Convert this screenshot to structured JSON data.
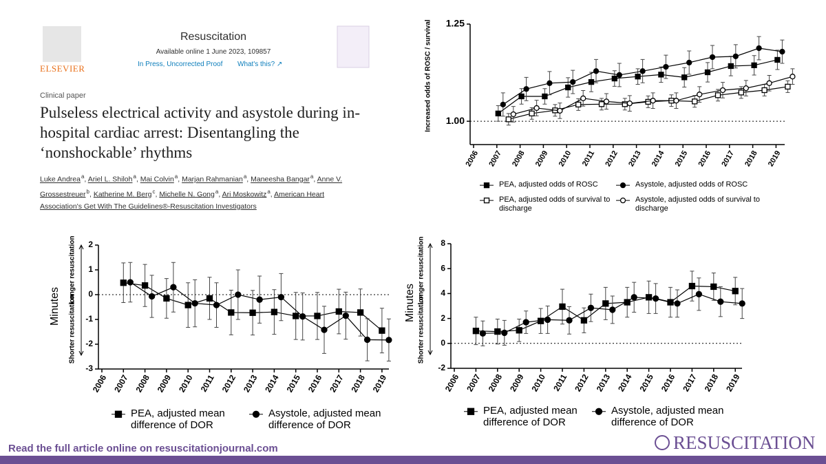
{
  "article": {
    "publisher": "ELSEVIER",
    "journal": "Resuscitation",
    "available": "Available online 1 June 2023, 109857",
    "status": "In Press, Uncorrected Proof",
    "whats_this": "What's this? ↗",
    "section": "Clinical paper",
    "title": "Pulseless electrical activity and asystole during in-hospital cardiac arrest: Disentangling the ‘nonshockable’ rhythms",
    "authors": [
      {
        "name": "Luke Andrea",
        "aff": "a"
      },
      {
        "name": "Ariel L. Shiloh",
        "aff": "a"
      },
      {
        "name": "Mai Colvin",
        "aff": "a"
      },
      {
        "name": "Marjan Rahmanian",
        "aff": "a"
      },
      {
        "name": "Maneesha Bangar",
        "aff": "a"
      },
      {
        "name": "Anne V. Grossestreuer",
        "aff": "b"
      },
      {
        "name": "Katherine M. Berg",
        "aff": "c"
      },
      {
        "name": "Michelle N. Gong",
        "aff": "a"
      },
      {
        "name": "Ari Moskowitz",
        "aff": "a"
      }
    ],
    "group": "American Heart Association's Get With The Guidelines®-Resuscitation Investigators"
  },
  "footer": {
    "cta": "Read the full article online on resuscitationjournal.com",
    "logo": "RESUSCITATION"
  },
  "chart_data": [
    {
      "type": "line",
      "ylabel": "Increased odds of ROSC / survival",
      "categories": [
        "2006",
        "2007",
        "2008",
        "2009",
        "2010",
        "2011",
        "2012",
        "2013",
        "2014",
        "2015",
        "2016",
        "2017",
        "2018",
        "2019"
      ],
      "ylim": [
        0.94,
        1.25
      ],
      "yticks": [
        {
          "value": 1,
          "label": "1.00"
        },
        1.25
      ],
      "reference_line_at_tick": 0,
      "series": [
        {
          "name": "PEA, adjusted odds of ROSC",
          "color": "#000000",
          "marker": "square",
          "filled": true,
          "values": [
            null,
            1.02,
            1.064,
            1.064,
            1.087,
            1.101,
            1.11,
            1.115,
            1.12,
            1.113,
            1.126,
            1.142,
            1.144,
            1.158
          ],
          "errors": [
            null,
            0.02,
            0.02,
            0.02,
            0.025,
            0.025,
            0.02,
            0.02,
            0.02,
            0.025,
            0.025,
            0.025,
            0.025,
            0.025
          ]
        },
        {
          "name": "Asystole, adjusted odds of ROSC",
          "color": "#000000",
          "marker": "circle",
          "filled": true,
          "values": [
            null,
            1.043,
            1.083,
            1.098,
            1.101,
            1.129,
            1.119,
            1.129,
            1.14,
            1.151,
            1.165,
            1.167,
            1.188,
            1.179
          ],
          "errors": [
            null,
            0.03,
            0.03,
            0.03,
            0.03,
            0.03,
            0.03,
            0.03,
            0.03,
            0.03,
            0.03,
            0.03,
            0.03,
            0.03
          ]
        },
        {
          "name": "PEA, adjusted odds of survival to discharge",
          "color": "#000000",
          "marker": "square",
          "filled": false,
          "values": [
            null,
            1.005,
            1.02,
            1.028,
            1.043,
            1.044,
            1.044,
            1.05,
            1.053,
            1.051,
            1.067,
            1.074,
            1.08,
            1.089
          ],
          "errors": [
            null,
            0.015,
            0.015,
            0.015,
            0.015,
            0.015,
            0.015,
            0.015,
            0.015,
            0.015,
            0.015,
            0.015,
            0.015,
            0.015
          ]
        },
        {
          "name": "Asystole, adjusted odds of survival to discharge",
          "color": "#000000",
          "marker": "circle",
          "filled": false,
          "values": [
            null,
            1.018,
            1.034,
            1.027,
            1.059,
            1.051,
            1.046,
            1.053,
            1.053,
            1.069,
            1.08,
            1.085,
            1.098,
            1.115
          ],
          "errors": [
            null,
            0.02,
            0.02,
            0.02,
            0.02,
            0.02,
            0.02,
            0.02,
            0.02,
            0.02,
            0.02,
            0.02,
            0.02,
            0.02
          ]
        }
      ]
    },
    {
      "type": "line",
      "ylabel": "Minutes",
      "annotations": [
        "Longer resuscitation",
        "Shorter resuscitation"
      ],
      "categories": [
        "2006",
        "2007",
        "2008",
        "2009",
        "2010",
        "2011",
        "2012",
        "2013",
        "2014",
        "2015",
        "2016",
        "2017",
        "2018",
        "2019"
      ],
      "ylim": [
        -3,
        2
      ],
      "yticks": [
        -3,
        -2,
        -1,
        0,
        1,
        2
      ],
      "reference_line_at_tick": 3,
      "series": [
        {
          "name": "PEA, adjusted mean difference of DOR",
          "color": "#000000",
          "marker": "square",
          "filled": true,
          "values": [
            null,
            0.48,
            0.37,
            -0.15,
            -0.42,
            -0.15,
            -0.72,
            -0.73,
            -0.7,
            -0.86,
            -0.86,
            -0.68,
            -0.72,
            -1.45
          ],
          "errors": [
            null,
            0.8,
            0.85,
            0.8,
            0.9,
            0.85,
            0.9,
            0.9,
            0.9,
            0.95,
            0.95,
            0.9,
            0.95,
            0.9
          ]
        },
        {
          "name": "Asystole, adjusted mean difference of DOR",
          "color": "#000000",
          "marker": "circle",
          "filled": true,
          "values": [
            null,
            0.5,
            -0.07,
            0.3,
            -0.35,
            -0.42,
            0.0,
            -0.2,
            -0.1,
            -0.88,
            -1.42,
            -0.85,
            -1.82,
            -1.83
          ],
          "errors": [
            null,
            0.8,
            0.85,
            1.0,
            0.95,
            0.9,
            1.0,
            0.95,
            0.95,
            0.95,
            0.95,
            0.95,
            0.85,
            0.85
          ]
        }
      ]
    },
    {
      "type": "line",
      "ylabel": "Minutes",
      "annotations": [
        "Longer resuscitation",
        "Shorter resuscitation"
      ],
      "categories": [
        "2006",
        "2007",
        "2008",
        "2009",
        "2010",
        "2011",
        "2012",
        "2013",
        "2014",
        "2015",
        "2016",
        "2017",
        "2018",
        "2019"
      ],
      "ylim": [
        -2,
        8
      ],
      "yticks": [
        -2,
        0,
        2,
        4,
        6,
        8
      ],
      "reference_line_at_tick": 1,
      "series": [
        {
          "name": "PEA, adjusted mean difference of DOR",
          "color": "#000000",
          "marker": "square",
          "filled": true,
          "values": [
            null,
            1.0,
            0.95,
            1.05,
            1.8,
            2.95,
            1.85,
            3.2,
            3.3,
            3.7,
            3.3,
            4.6,
            4.55,
            4.2
          ],
          "errors": [
            null,
            1.1,
            1.0,
            0.9,
            1.0,
            1.4,
            1.0,
            1.3,
            1.2,
            1.3,
            1.2,
            1.2,
            1.1,
            1.1
          ]
        },
        {
          "name": "Asystole, adjusted mean difference of DOR",
          "color": "#000000",
          "marker": "circle",
          "filled": true,
          "values": [
            null,
            0.8,
            0.85,
            1.7,
            1.9,
            1.85,
            2.85,
            2.7,
            3.7,
            3.6,
            3.2,
            3.95,
            3.35,
            3.2
          ],
          "errors": [
            null,
            1.0,
            1.0,
            0.9,
            1.1,
            1.1,
            1.1,
            1.1,
            1.2,
            1.2,
            1.1,
            1.3,
            1.2,
            1.2
          ]
        }
      ]
    }
  ]
}
